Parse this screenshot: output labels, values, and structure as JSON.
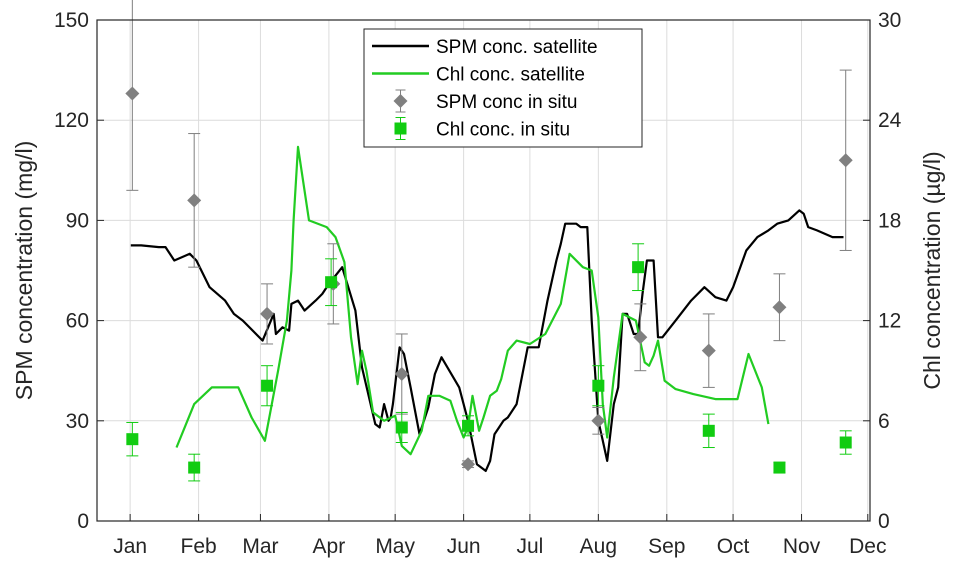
{
  "chart_data": {
    "type": "line",
    "x_categories": [
      "Jan",
      "Feb",
      "Mar",
      "Apr",
      "May",
      "Jun",
      "Jul",
      "Aug",
      "Sep",
      "Oct",
      "Nov",
      "Dec"
    ],
    "y_left": {
      "label": "SPM concentration (mg/l)",
      "lim": [
        0,
        150
      ],
      "ticks": [
        "0",
        "30",
        "60",
        "90",
        "120",
        "150"
      ]
    },
    "y_right": {
      "label": "Chl concentration (µg/l)",
      "lim": [
        0,
        30
      ],
      "ticks": [
        "0",
        "6",
        "12",
        "18",
        "24",
        "30"
      ]
    },
    "grid": true,
    "legend_position": "top-center",
    "series": [
      {
        "name": "SPM conc. satellite",
        "kind": "line",
        "axis": "left",
        "color": "#000000",
        "x": [
          15.3,
          20,
          28,
          31,
          35,
          42,
          45,
          51,
          58,
          62,
          66,
          75,
          80,
          81,
          84,
          87,
          88,
          91,
          94,
          99,
          102,
          105,
          111,
          117,
          120,
          126,
          128,
          130,
          132,
          133,
          134,
          137,
          139,
          142,
          146,
          150,
          153,
          156,
          164,
          168,
          172,
          176,
          178,
          180,
          182,
          184,
          186,
          190,
          195,
          197,
          200,
          204,
          208,
          210,
          212,
          217,
          219,
          222,
          224,
          227,
          229,
          231,
          234,
          236,
          238,
          240,
          242,
          243,
          245,
          247,
          249,
          250,
          252,
          254,
          256,
          262,
          269,
          275,
          280,
          285,
          288,
          294,
          299,
          304,
          308,
          313,
          318,
          320,
          322,
          326,
          333,
          338
        ],
        "y": [
          82.5,
          82.5,
          82,
          82,
          78,
          80,
          78,
          70,
          66,
          62,
          60,
          54,
          62,
          56,
          58,
          57,
          65,
          66,
          63,
          66,
          68,
          71,
          76,
          63,
          46,
          29,
          28,
          35,
          30,
          31,
          35,
          52,
          50,
          40,
          26,
          34,
          44,
          49,
          40,
          30,
          17,
          15,
          18,
          26,
          28,
          30,
          31,
          35,
          52,
          52,
          52,
          66,
          78,
          83,
          89,
          89,
          88,
          88,
          60,
          30,
          24,
          18,
          35,
          40,
          62,
          62,
          58,
          56,
          56,
          68,
          78,
          78,
          78,
          55,
          55,
          60,
          66,
          70,
          67,
          66,
          70,
          81,
          85,
          87,
          89,
          90,
          93,
          92,
          88,
          87,
          85,
          85
        ]
      },
      {
        "name": "Chl conc. satellite",
        "kind": "line",
        "axis": "right",
        "color": "#22cc22",
        "x": [
          36,
          44,
          52,
          58,
          64,
          70,
          76,
          82,
          86,
          88,
          89,
          91,
          96,
          104,
          108,
          112,
          115,
          118,
          120,
          122,
          125,
          130,
          135,
          138,
          142,
          147,
          150,
          155,
          160,
          163,
          166,
          168,
          170,
          173,
          175,
          178,
          181,
          183,
          186,
          190,
          196,
          203,
          210,
          214,
          220,
          224,
          227,
          229,
          231,
          234,
          238,
          244,
          248,
          250,
          252,
          254,
          257,
          262,
          270,
          280,
          290,
          295,
          301,
          304
        ],
        "y": [
          4.4,
          7,
          8,
          8,
          8,
          6.2,
          4.8,
          9,
          12,
          15,
          18,
          22.4,
          18,
          17.6,
          17,
          15.5,
          11,
          8.2,
          10.2,
          9,
          6.5,
          6,
          6.3,
          4.5,
          4,
          5.4,
          7.5,
          7.5,
          7.2,
          6,
          5,
          5.6,
          7.5,
          5.4,
          6.2,
          7.5,
          7.8,
          8.5,
          10.2,
          10.8,
          10.6,
          11.2,
          13,
          16,
          15.2,
          15,
          12.2,
          7,
          5,
          8.6,
          12.4,
          12,
          9.5,
          9.3,
          9.9,
          10.8,
          8.4,
          7.9,
          7.6,
          7.3,
          7.3,
          10,
          8,
          5.8
        ]
      },
      {
        "name": "SPM conc in situ",
        "kind": "points",
        "axis": "left",
        "color": "#808080",
        "marker": "diamond",
        "x": [
          16,
          44,
          77,
          107,
          138,
          168,
          227,
          246,
          277,
          309,
          339
        ],
        "y": [
          128,
          96,
          62,
          71,
          44,
          17,
          30,
          55,
          51,
          64,
          108
        ],
        "err": [
          29,
          20,
          9,
          12,
          12,
          1,
          4,
          10,
          11,
          10,
          27
        ]
      },
      {
        "name": "Chl conc. in situ",
        "kind": "points",
        "axis": "right",
        "color": "#11cc11",
        "marker": "square",
        "x": [
          16,
          44,
          77,
          106,
          138,
          168,
          227,
          245,
          277,
          309,
          339
        ],
        "y": [
          4.9,
          3.2,
          8.1,
          14.3,
          5.6,
          5.7,
          8.1,
          15.2,
          5.4,
          3.2,
          4.7
        ],
        "err": [
          1,
          0.8,
          1.2,
          1.4,
          0.9,
          0.6,
          1.2,
          1.4,
          1,
          0.3,
          0.7
        ]
      }
    ]
  }
}
